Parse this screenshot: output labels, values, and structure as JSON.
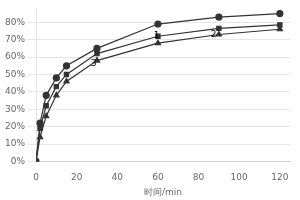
{
  "chart_data": {
    "type": "line",
    "xlabel": "时间/min",
    "x": [
      0,
      2,
      5,
      10,
      15,
      30,
      60,
      90,
      120
    ],
    "series": [
      {
        "values": [
          0,
          0.22,
          0.38,
          0.48,
          0.55,
          0.65,
          0.79,
          0.83,
          0.85
        ],
        "color": "#333333",
        "marker": "circle"
      },
      {
        "values": [
          0,
          0.19,
          0.32,
          0.43,
          0.5,
          0.62,
          0.72,
          0.765,
          0.785
        ],
        "color": "#333333",
        "marker": "square"
      },
      {
        "values": [
          0,
          0.14,
          0.26,
          0.38,
          0.46,
          0.58,
          0.68,
          0.73,
          0.76
        ],
        "color": "#333333",
        "marker": "triangle"
      }
    ],
    "annotations": [
      {
        "text": "1",
        "x": 58,
        "y": 0.695
      },
      {
        "text": "2",
        "x": 86,
        "y": 0.705
      },
      {
        "text": "3",
        "x": 27,
        "y": 0.535
      }
    ],
    "xlim": [
      0,
      125
    ],
    "ylim": [
      0,
      0.88
    ],
    "xticks": [
      0,
      20,
      40,
      60,
      80,
      100,
      120
    ],
    "yticks": [
      {
        "value": 0.0,
        "label": "0%"
      },
      {
        "value": 0.1,
        "label": "10%"
      },
      {
        "value": 0.2,
        "label": "20%"
      },
      {
        "value": 0.3,
        "label": "30%"
      },
      {
        "value": 0.4,
        "label": "40%"
      },
      {
        "value": 0.5,
        "label": "50%"
      },
      {
        "value": 0.6,
        "label": "60%"
      },
      {
        "value": 0.7,
        "label": "70%"
      },
      {
        "value": 0.8,
        "label": "80%"
      }
    ],
    "grid": "y"
  }
}
